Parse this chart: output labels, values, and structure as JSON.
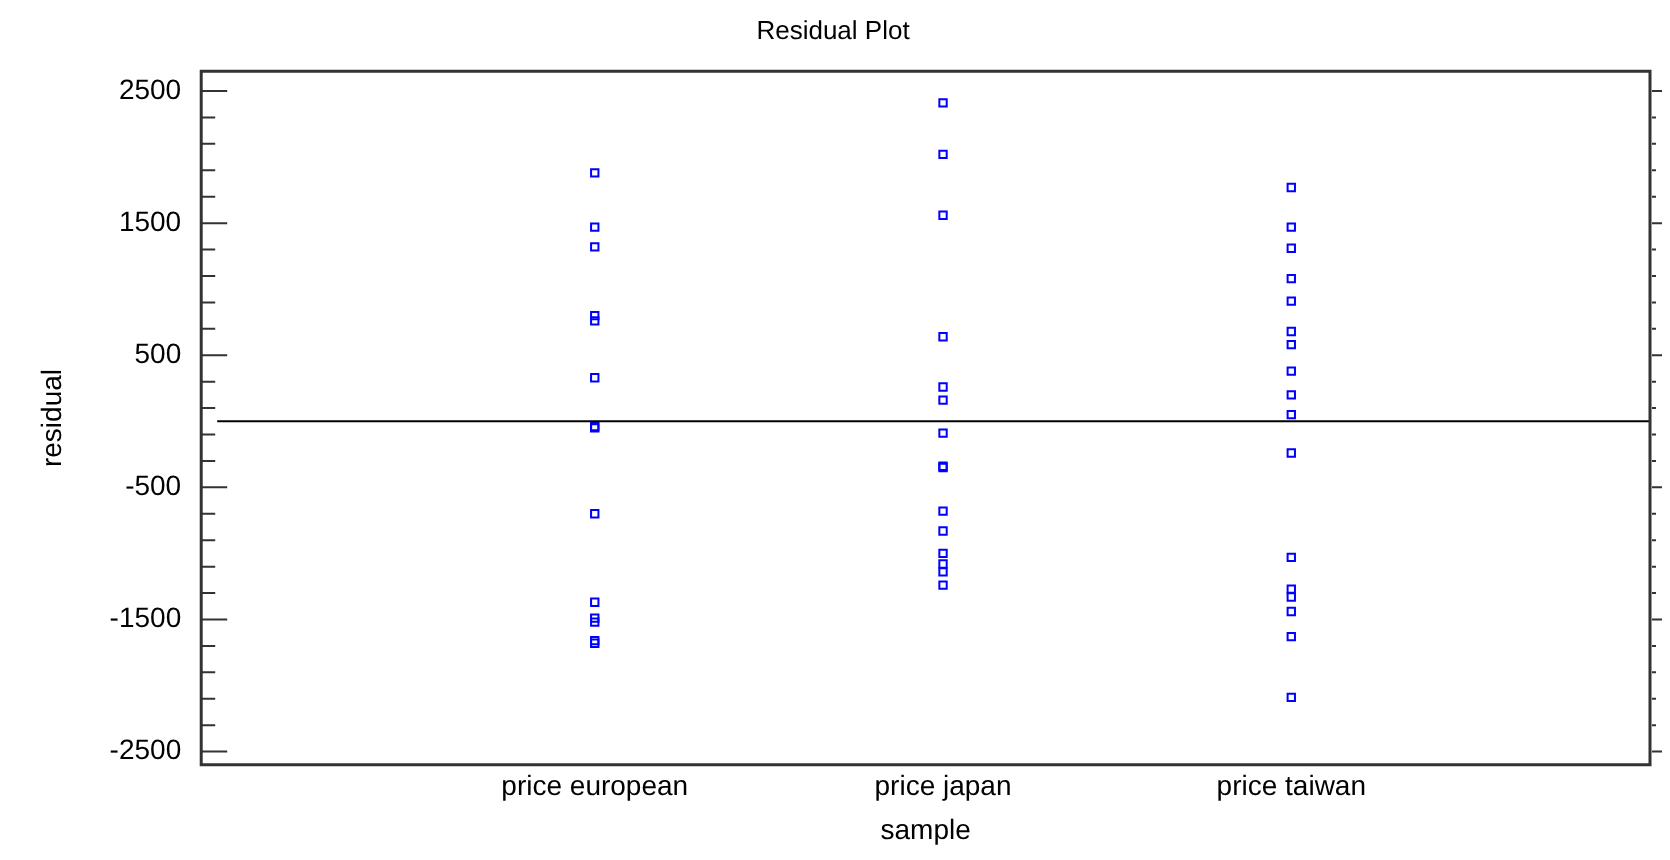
{
  "chart_data": {
    "type": "scatter",
    "title": "Residual Plot",
    "xlabel": "sample",
    "ylabel": "residual",
    "categories": [
      "price european",
      "price japan",
      "price taiwan"
    ],
    "series": [
      {
        "color": "#0000ff",
        "x": [
          "price european",
          "price european",
          "price european",
          "price european",
          "price european",
          "price european",
          "price european",
          "price european",
          "price european",
          "price european",
          "price european",
          "price european",
          "price european",
          "price european"
        ],
        "values": [
          1880,
          1470,
          1320,
          800,
          760,
          330,
          -40,
          -50,
          -700,
          -1370,
          -1490,
          -1520,
          -1660,
          -1680
        ]
      },
      {
        "color": "#0000ff",
        "x": [
          "price japan",
          "price japan",
          "price japan",
          "price japan",
          "price japan",
          "price japan",
          "price japan",
          "price japan",
          "price japan",
          "price japan",
          "price japan",
          "price japan",
          "price japan",
          "price japan",
          "price japan"
        ],
        "values": [
          2410,
          2020,
          1560,
          640,
          260,
          160,
          -90,
          -340,
          -350,
          -680,
          -830,
          -1000,
          -1080,
          -1140,
          -1240
        ]
      },
      {
        "color": "#0000ff",
        "x": [
          "price taiwan",
          "price taiwan",
          "price taiwan",
          "price taiwan",
          "price taiwan",
          "price taiwan",
          "price taiwan",
          "price taiwan",
          "price taiwan",
          "price taiwan",
          "price taiwan",
          "price taiwan",
          "price taiwan",
          "price taiwan",
          "price taiwan",
          "price taiwan",
          "price taiwan"
        ],
        "values": [
          1770,
          1470,
          1310,
          1080,
          910,
          680,
          580,
          380,
          200,
          50,
          -240,
          -1030,
          -1270,
          -1330,
          -1440,
          -1630,
          -2090
        ]
      }
    ],
    "ylim": [
      -2600,
      2650
    ],
    "yticks": [
      2500,
      {
        "value": 2300,
        "label": null
      },
      {
        "value": 2100,
        "label": null
      },
      {
        "value": 1900,
        "label": null
      },
      {
        "value": 1700,
        "label": null
      },
      1500,
      {
        "value": 1300,
        "label": null
      },
      {
        "value": 1100,
        "label": null
      },
      {
        "value": 900,
        "label": null
      },
      {
        "value": 700,
        "label": null
      },
      500,
      {
        "value": 300,
        "label": null
      },
      {
        "value": 100,
        "label": null
      },
      {
        "value": -100,
        "label": null
      },
      {
        "value": -300,
        "label": null
      },
      -500,
      {
        "value": -700,
        "label": null
      },
      {
        "value": -900,
        "label": null
      },
      {
        "value": -1100,
        "label": null
      },
      {
        "value": -1300,
        "label": null
      },
      -1500,
      {
        "value": -1700,
        "label": null
      },
      {
        "value": -1900,
        "label": null
      },
      {
        "value": -2100,
        "label": null
      },
      {
        "value": -2300,
        "label": null
      },
      -2500
    ],
    "ref_lines": [
      {
        "axis": "y",
        "value": 0,
        "color": "#000000"
      }
    ],
    "marker": "square",
    "grid": false,
    "legend": false
  }
}
